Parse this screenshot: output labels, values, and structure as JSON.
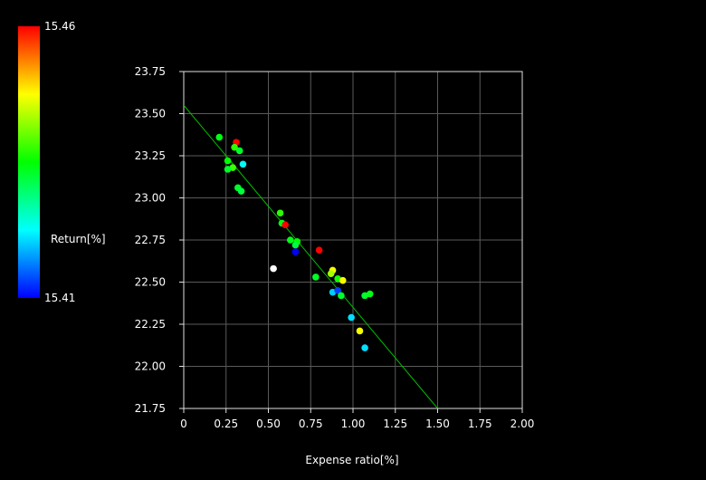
{
  "chart_data": {
    "type": "scatter",
    "xlabel": "Expense ratio[%]",
    "ylabel": "",
    "xlim": [
      0,
      2.0
    ],
    "ylim": [
      21.75,
      23.75
    ],
    "xticks": [
      "0",
      "0.25",
      "0.50",
      "0.75",
      "1.00",
      "1.25",
      "1.50",
      "1.75",
      "2.00"
    ],
    "yticks": [
      "21.75",
      "22.00",
      "22.25",
      "22.50",
      "22.75",
      "23.00",
      "23.25",
      "23.50",
      "23.75"
    ],
    "grid": true,
    "trendline": {
      "x": [
        0,
        1.5
      ],
      "y": [
        23.55,
        21.75
      ],
      "color": "#00c000"
    },
    "colorbar": {
      "label": "Return[%]",
      "max_label": "15.46",
      "min_label": "15.41",
      "min": 15.41,
      "max": 15.46
    },
    "points": [
      {
        "x": 0.21,
        "y": 23.36,
        "c": 15.434
      },
      {
        "x": 0.31,
        "y": 23.33,
        "c": 15.46
      },
      {
        "x": 0.3,
        "y": 23.3,
        "c": 15.437
      },
      {
        "x": 0.33,
        "y": 23.28,
        "c": 15.433
      },
      {
        "x": 0.26,
        "y": 23.22,
        "c": 15.435
      },
      {
        "x": 0.35,
        "y": 23.2,
        "c": 15.423
      },
      {
        "x": 0.29,
        "y": 23.18,
        "c": 15.438
      },
      {
        "x": 0.26,
        "y": 23.17,
        "c": 15.433
      },
      {
        "x": 0.32,
        "y": 23.06,
        "c": 15.433
      },
      {
        "x": 0.34,
        "y": 23.04,
        "c": 15.432
      },
      {
        "x": 0.57,
        "y": 22.91,
        "c": 15.437
      },
      {
        "x": 0.58,
        "y": 22.85,
        "c": 15.434
      },
      {
        "x": 0.6,
        "y": 22.84,
        "c": 15.46
      },
      {
        "x": 0.63,
        "y": 22.75,
        "c": 15.434
      },
      {
        "x": 0.67,
        "y": 22.74,
        "c": 15.435
      },
      {
        "x": 0.66,
        "y": 22.72,
        "c": 15.432
      },
      {
        "x": 0.8,
        "y": 22.69,
        "c": 15.46
      },
      {
        "x": 0.66,
        "y": 22.68,
        "c": 15.41
      },
      {
        "x": 0.53,
        "y": 22.58,
        "c": null
      },
      {
        "x": 0.88,
        "y": 22.57,
        "c": 15.447
      },
      {
        "x": 0.87,
        "y": 22.55,
        "c": 15.443
      },
      {
        "x": 0.78,
        "y": 22.53,
        "c": 15.433
      },
      {
        "x": 0.91,
        "y": 22.52,
        "c": 15.436
      },
      {
        "x": 0.94,
        "y": 22.51,
        "c": 15.447
      },
      {
        "x": 0.88,
        "y": 22.44,
        "c": 15.42
      },
      {
        "x": 0.91,
        "y": 22.45,
        "c": 15.413
      },
      {
        "x": 0.93,
        "y": 22.42,
        "c": 15.433
      },
      {
        "x": 1.07,
        "y": 22.42,
        "c": 15.433
      },
      {
        "x": 1.1,
        "y": 22.43,
        "c": 15.434
      },
      {
        "x": 0.99,
        "y": 22.29,
        "c": 15.421
      },
      {
        "x": 1.04,
        "y": 22.21,
        "c": 15.447
      },
      {
        "x": 1.07,
        "y": 22.11,
        "c": 15.421
      }
    ]
  }
}
